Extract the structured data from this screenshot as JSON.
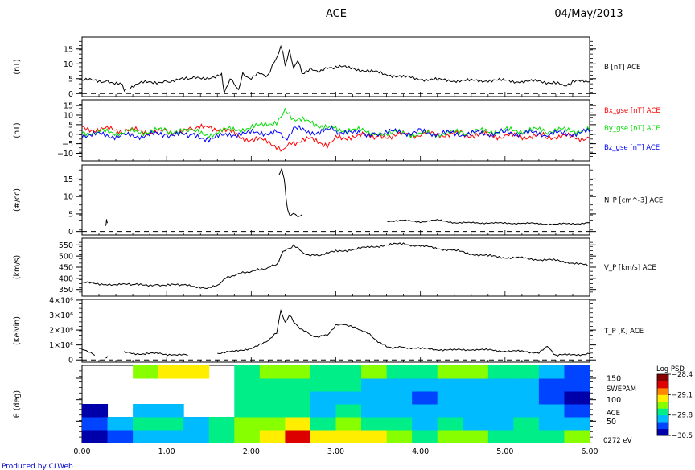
{
  "header": {
    "title": "ACE",
    "date": "04/May/2013"
  },
  "footer": {
    "credit": "Produced by CLWeb"
  },
  "chart_data": [
    {
      "type": "line",
      "panel": "magnetic-field-magnitude",
      "ylabel": "(nT)",
      "right_label": "B [nT] ACE",
      "xlim": [
        0,
        6
      ],
      "ylim": [
        -1,
        19
      ],
      "yticks": [
        0,
        5,
        10,
        15
      ],
      "ytick_labels": [
        "0",
        "5",
        "10",
        "15"
      ],
      "zero_line": "dashed",
      "colors": [
        "#000000"
      ],
      "series": [
        {
          "x": [
            0,
            0.3,
            0.45,
            0.5,
            0.7,
            1.0,
            1.3,
            1.5,
            1.65,
            1.68,
            1.75,
            1.85,
            1.9,
            2.0,
            2.1,
            2.2,
            2.3,
            2.35,
            2.4,
            2.45,
            2.5,
            2.55,
            2.6,
            2.7,
            2.8,
            2.9,
            3.0,
            3.2,
            3.4,
            3.6,
            3.8,
            4.0,
            4.2,
            4.4,
            4.6,
            4.8,
            5.0,
            5.2,
            5.4,
            5.6,
            5.7,
            5.8,
            6.0
          ],
          "values": [
            4.5,
            4.2,
            3.5,
            1.5,
            3.5,
            4.2,
            5,
            5.5,
            6,
            0.5,
            5,
            1.5,
            6.5,
            5,
            7,
            6,
            12,
            16,
            10,
            14,
            9,
            11,
            7,
            8,
            7.5,
            8.5,
            9,
            8.5,
            7.5,
            6.5,
            5.5,
            5,
            4.5,
            4.5,
            4.2,
            4.5,
            4.3,
            4.1,
            4,
            3.8,
            2.5,
            4,
            4
          ]
        }
      ]
    },
    {
      "type": "line",
      "panel": "magnetic-field-components",
      "ylabel": "(nT)",
      "xlim": [
        0,
        6
      ],
      "ylim": [
        -14,
        18
      ],
      "yticks": [
        -10,
        -5,
        0,
        5,
        10,
        15
      ],
      "ytick_labels": [
        "−10",
        "−5",
        "0",
        "5",
        "10",
        "15"
      ],
      "legend_position": "right",
      "colors": [
        "#ff0000",
        "#00dd00",
        "#0000ff"
      ],
      "series": [
        {
          "name": "Bx_gse [nT] ACE",
          "x": [
            0,
            0.5,
            1.0,
            1.3,
            1.5,
            1.7,
            1.9,
            2.1,
            2.3,
            2.4,
            2.5,
            2.7,
            2.9,
            3.0,
            3.2,
            3.5,
            4.0,
            4.5,
            5.0,
            5.5,
            6.0
          ],
          "values": [
            3,
            2,
            1,
            2,
            4,
            2,
            -2,
            -3,
            -6,
            -8,
            -4,
            -3,
            -5,
            -2,
            -1,
            -1,
            0,
            0,
            -1,
            -1,
            -2
          ]
        },
        {
          "name": "By_gse [nT] ACE",
          "x": [
            0,
            0.5,
            1.0,
            1.3,
            1.5,
            1.7,
            1.9,
            2.1,
            2.3,
            2.4,
            2.5,
            2.7,
            2.9,
            3.0,
            3.2,
            3.5,
            4.0,
            4.5,
            5.0,
            5.5,
            6.0
          ],
          "values": [
            1,
            1,
            2,
            1,
            0,
            2,
            3,
            4,
            7,
            12,
            8,
            6,
            4,
            3,
            2,
            1,
            0,
            1,
            2,
            2,
            2
          ]
        },
        {
          "name": "Bz_gse [nT] ACE",
          "x": [
            0,
            0.5,
            1.0,
            1.3,
            1.5,
            1.7,
            1.9,
            2.1,
            2.3,
            2.4,
            2.5,
            2.7,
            2.9,
            3.0,
            3.2,
            3.5,
            4.0,
            4.5,
            5.0,
            5.5,
            6.0
          ],
          "values": [
            0,
            -1,
            0,
            -1,
            -2,
            -1,
            1,
            0,
            2,
            -3,
            3,
            1,
            2,
            2,
            0,
            1,
            1,
            0,
            1,
            0,
            1
          ]
        }
      ]
    },
    {
      "type": "line",
      "panel": "proton-density",
      "ylabel": "(#/cc)",
      "right_label": "N_P [cm^-3] ACE",
      "xlim": [
        0,
        6
      ],
      "ylim": [
        -1,
        19
      ],
      "yticks": [
        0,
        5,
        10,
        15
      ],
      "ytick_labels": [
        "0",
        "5",
        "10",
        "15"
      ],
      "zero_line": "dashed",
      "colors": [
        "#000000"
      ],
      "series": [
        {
          "segments": [
            {
              "x": [
                0.28,
                0.29,
                0.3
              ],
              "values": [
                1.8,
                3.2,
                2.4
              ]
            },
            {
              "x": [
                2.33,
                2.36,
                2.39,
                2.41,
                2.43,
                2.46,
                2.5,
                2.55,
                2.6
              ],
              "values": [
                16,
                18,
                15,
                10,
                6,
                4.5,
                5.2,
                4.2,
                4.8
              ]
            },
            {
              "x": [
                3.6,
                3.8,
                4.0,
                4.2,
                4.4,
                4.6,
                4.8,
                5.0,
                5.2,
                5.4,
                5.6,
                5.8,
                6.0
              ],
              "values": [
                3,
                3.1,
                2.8,
                3.2,
                2.6,
                2.4,
                2.5,
                2.3,
                2.4,
                2.2,
                2.1,
                2.2,
                2.5
              ]
            }
          ]
        }
      ]
    },
    {
      "type": "line",
      "panel": "proton-velocity",
      "ylabel": "(km/s)",
      "right_label": "V_P [km/s] ACE",
      "xlim": [
        0,
        6
      ],
      "ylim": [
        320,
        580
      ],
      "yticks": [
        350,
        400,
        450,
        500,
        550
      ],
      "ytick_labels": [
        "350",
        "400",
        "450",
        "500",
        "550"
      ],
      "colors": [
        "#000000"
      ],
      "series": [
        {
          "x": [
            0,
            0.3,
            0.6,
            0.9,
            1.2,
            1.4,
            1.5,
            1.6,
            1.7,
            1.8,
            1.9,
            2.0,
            2.1,
            2.2,
            2.3,
            2.35,
            2.4,
            2.5,
            2.6,
            2.7,
            2.8,
            3.0,
            3.2,
            3.4,
            3.6,
            3.8,
            4.0,
            4.2,
            4.4,
            4.6,
            4.8,
            5.0,
            5.2,
            5.4,
            5.6,
            5.8,
            6.0
          ],
          "values": [
            380,
            375,
            370,
            372,
            368,
            362,
            355,
            370,
            400,
            415,
            425,
            430,
            440,
            448,
            460,
            500,
            530,
            545,
            520,
            500,
            505,
            520,
            530,
            540,
            550,
            555,
            545,
            535,
            525,
            510,
            500,
            495,
            490,
            485,
            480,
            470,
            455
          ]
        }
      ]
    },
    {
      "type": "line",
      "panel": "proton-temperature",
      "ylabel": "(Kelvin)",
      "right_label": "T_P [K] ACE",
      "xlim": [
        0,
        6
      ],
      "ylim": [
        -150000,
        4050000
      ],
      "yticks": [
        0,
        1000000,
        2000000,
        3000000,
        4000000
      ],
      "ytick_labels": [
        "0",
        "1×10⁶",
        "2×10⁶",
        "3×10⁶",
        "4×10⁶"
      ],
      "zero_line": "dashed",
      "colors": [
        "#000000"
      ],
      "series": [
        {
          "segments": [
            {
              "x": [
                0,
                0.05,
                0.1,
                0.15
              ],
              "values": [
                700000,
                600000,
                500000,
                300000
              ]
            },
            {
              "x": [
                0.28,
                0.3
              ],
              "values": [
                150000,
                250000
              ]
            },
            {
              "x": [
                0.5,
                0.7,
                0.9,
                1.1,
                1.25
              ],
              "values": [
                500000,
                400000,
                420000,
                350000,
                300000
              ]
            },
            {
              "x": [
                1.6,
                1.8,
                2.0,
                2.1,
                2.2,
                2.3,
                2.35,
                2.4,
                2.45,
                2.5,
                2.6,
                2.7,
                2.8,
                2.9,
                3.0,
                3.1,
                3.2,
                3.3,
                3.4,
                3.5,
                3.6,
                3.7,
                3.8,
                4.0,
                4.2,
                4.4,
                4.6,
                4.8,
                5.0,
                5.2,
                5.4,
                5.5,
                5.6,
                5.8,
                6.0
              ],
              "values": [
                450000,
                550000,
                800000,
                1000000,
                1300000,
                1800000,
                3300000,
                2500000,
                3000000,
                2600000,
                2000000,
                1700000,
                1500000,
                1700000,
                2300000,
                2400000,
                2200000,
                2000000,
                1700000,
                1200000,
                900000,
                800000,
                850000,
                750000,
                700000,
                650000,
                700000,
                650000,
                600000,
                550000,
                500000,
                900000,
                300000,
                350000,
                400000
              ]
            }
          ]
        }
      ]
    },
    {
      "type": "heatmap",
      "panel": "swepam-angle",
      "ylabel": "θ (deg)",
      "right_labels": [
        "SWEPAM",
        "ACE",
        "0272 eV"
      ],
      "xlim": [
        0,
        6
      ],
      "ylim": [
        0,
        180
      ],
      "yticks": [
        50,
        100,
        150
      ],
      "ytick_labels": [
        "50",
        "100",
        "150"
      ],
      "xticks": [
        0,
        1,
        2,
        3,
        4,
        5,
        6
      ],
      "xtick_labels": [
        "0.00",
        "1.00",
        "2.00",
        "3.00",
        "4.00",
        "5.00",
        "6.00"
      ],
      "colorbar": {
        "label": "Log PSD",
        "range": [
          -30.5,
          -28.4
        ],
        "ticks": [
          -28.4,
          -29.1,
          -29.8,
          -30.5
        ],
        "tick_labels": [
          "−28.4",
          "−29.1",
          "−29.8",
          "−30.5"
        ],
        "colors": [
          "#0000aa",
          "#0044ff",
          "#00bbff",
          "#00ee88",
          "#88ff00",
          "#ffee00",
          "#ff8800",
          "#dd0000",
          "#880000"
        ]
      },
      "x_bins": [
        0.0,
        0.3,
        0.6,
        0.9,
        1.2,
        1.5,
        1.8,
        2.1,
        2.4,
        2.7,
        3.0,
        3.3,
        3.6,
        3.9,
        4.2,
        4.5,
        4.8,
        5.1,
        5.4,
        5.7
      ],
      "bin_width": 0.3,
      "y_bins": [
        0,
        30,
        60,
        90,
        120,
        150
      ],
      "bin_height": 30,
      "values": [
        [
          -30.3,
          -30.1,
          -30.0,
          -29.9,
          -29.9,
          -29.7,
          -29.5,
          -29.1,
          -28.8,
          -29.2,
          -29.2,
          -29.3,
          -29.5,
          -29.6,
          -29.5,
          -29.5,
          -29.6,
          -29.6,
          -29.7,
          -29.5
        ],
        [
          -30.2,
          -29.9,
          -29.6,
          -29.7,
          -29.8,
          -29.7,
          -29.5,
          -29.4,
          -29.3,
          -29.6,
          -29.5,
          -29.6,
          -29.7,
          -29.8,
          -29.7,
          -29.8,
          -29.8,
          -29.7,
          -29.8,
          -29.8
        ],
        [
          -30.4,
          null,
          -29.9,
          -29.8,
          null,
          null,
          -29.6,
          -29.6,
          -29.7,
          -29.8,
          -29.7,
          -29.8,
          -29.9,
          -30.0,
          -29.8,
          -29.9,
          -29.9,
          -30.0,
          -29.9,
          -30.2
        ],
        [
          null,
          null,
          null,
          null,
          null,
          null,
          -29.6,
          -29.6,
          -29.7,
          -29.8,
          -29.8,
          -29.9,
          -30.0,
          -30.1,
          -29.9,
          -29.8,
          -29.9,
          -30.0,
          -30.1,
          -30.3
        ],
        [
          null,
          null,
          null,
          null,
          null,
          null,
          -29.6,
          -29.6,
          -29.7,
          -29.7,
          -29.7,
          -29.8,
          -29.8,
          -29.9,
          -29.8,
          -29.8,
          -29.9,
          -29.9,
          -30.1,
          -30.2
        ],
        [
          null,
          null,
          -29.4,
          -29.3,
          -29.3,
          null,
          -29.6,
          -29.5,
          -29.5,
          -29.6,
          -29.6,
          -29.5,
          -29.6,
          -29.6,
          -29.5,
          -29.5,
          -29.6,
          -29.6,
          -29.8,
          -30.1
        ]
      ]
    }
  ]
}
